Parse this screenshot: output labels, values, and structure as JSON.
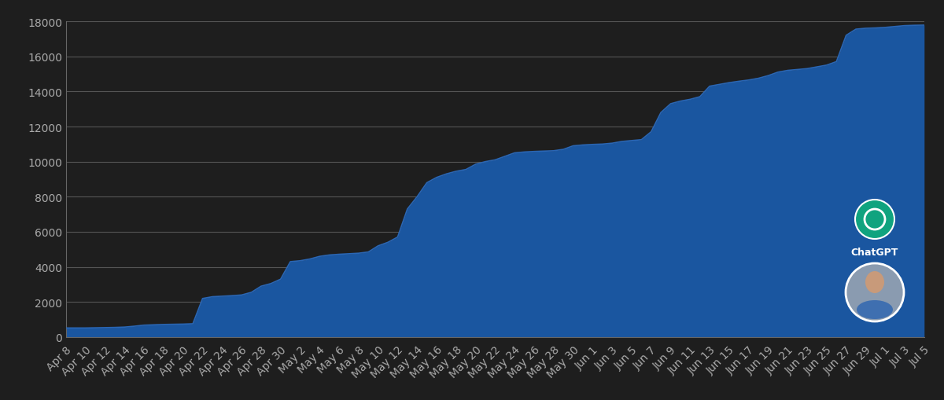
{
  "chart_data": {
    "type": "area",
    "color": "#1a56a0",
    "grid": true,
    "annotations": [
      "ChatGPT"
    ],
    "categories": [
      "Apr 8",
      null,
      "Apr 10",
      null,
      "Apr 12",
      null,
      "Apr 14",
      null,
      "Apr 16",
      null,
      "Apr 18",
      null,
      "Apr 20",
      null,
      "Apr 22",
      null,
      "Apr 24",
      null,
      "Apr 26",
      null,
      "Apr 28",
      null,
      "Apr 30",
      null,
      "May 2",
      null,
      "May 4",
      null,
      "May 6",
      null,
      "May 8",
      null,
      "May 10",
      null,
      "May 12",
      null,
      "May 14",
      null,
      "May 16",
      null,
      "May 18",
      null,
      "May 20",
      null,
      "May 22",
      null,
      "May 24",
      null,
      "May 26",
      null,
      "May 28",
      null,
      "May 30",
      null,
      "Jun 1",
      null,
      "Jun 3",
      null,
      "Jun 5",
      null,
      "Jun 7",
      null,
      "Jun 9",
      null,
      "Jun 11",
      null,
      "Jun 13",
      null,
      "Jun 15",
      null,
      "Jun 17",
      null,
      "Jun 19",
      null,
      "Jun 21",
      null,
      "Jun 23",
      null,
      "Jun 25",
      null,
      "Jun 27",
      null,
      "Jun 29",
      null,
      "Jul 1",
      null,
      "Jul 3",
      null,
      "Jul 5"
    ],
    "values": [
      520,
      520,
      520,
      530,
      540,
      550,
      570,
      620,
      680,
      700,
      720,
      730,
      740,
      760,
      2200,
      2300,
      2330,
      2360,
      2400,
      2550,
      2900,
      3050,
      3300,
      4300,
      4350,
      4450,
      4600,
      4680,
      4720,
      4750,
      4780,
      4850,
      5200,
      5400,
      5700,
      7300,
      8000,
      8800,
      9100,
      9300,
      9450,
      9550,
      9850,
      10000,
      10100,
      10300,
      10500,
      10550,
      10580,
      10600,
      10620,
      10700,
      10900,
      10950,
      10980,
      11000,
      11050,
      11150,
      11200,
      11250,
      11700,
      12800,
      13300,
      13450,
      13550,
      13700,
      14300,
      14400,
      14500,
      14580,
      14650,
      14750,
      14900,
      15100,
      15200,
      15250,
      15300,
      15400,
      15500,
      15700,
      17200,
      17550,
      17600,
      17620,
      17650,
      17700,
      17750,
      17770,
      17780
    ],
    "ylim": [
      0,
      18000
    ],
    "yticks": [
      0,
      2000,
      4000,
      6000,
      8000,
      10000,
      12000,
      14000,
      16000,
      18000
    ]
  }
}
